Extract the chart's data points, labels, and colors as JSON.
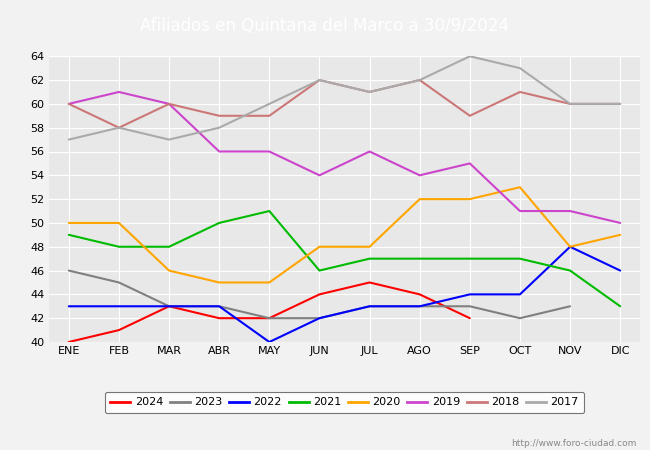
{
  "title": "Afiliados en Quintana del Marco a 30/9/2024",
  "header_bg": "#4472c4",
  "months": [
    "ENE",
    "FEB",
    "MAR",
    "ABR",
    "MAY",
    "JUN",
    "JUL",
    "AGO",
    "SEP",
    "OCT",
    "NOV",
    "DIC"
  ],
  "series": {
    "2024": {
      "color": "#ff0000",
      "data": [
        40,
        41,
        43,
        42,
        42,
        44,
        45,
        44,
        42,
        null,
        null,
        null
      ]
    },
    "2023": {
      "color": "#808080",
      "data": [
        46,
        45,
        43,
        43,
        42,
        42,
        43,
        43,
        43,
        42,
        43,
        null
      ]
    },
    "2022": {
      "color": "#0000ff",
      "data": [
        43,
        43,
        43,
        43,
        40,
        42,
        43,
        43,
        44,
        44,
        48,
        46
      ]
    },
    "2021": {
      "color": "#00bb00",
      "data": [
        49,
        48,
        48,
        50,
        51,
        46,
        47,
        47,
        47,
        47,
        46,
        43
      ]
    },
    "2020": {
      "color": "#ffa500",
      "data": [
        50,
        50,
        46,
        45,
        45,
        48,
        48,
        52,
        52,
        53,
        48,
        49
      ]
    },
    "2019": {
      "color": "#cc44cc",
      "data": [
        60,
        61,
        60,
        56,
        56,
        54,
        56,
        54,
        55,
        51,
        51,
        50
      ]
    },
    "2018": {
      "color": "#cc7777",
      "data": [
        60,
        58,
        60,
        59,
        59,
        62,
        61,
        62,
        59,
        61,
        60,
        60
      ]
    },
    "2017": {
      "color": "#aaaaaa",
      "data": [
        57,
        58,
        57,
        58,
        60,
        62,
        61,
        62,
        64,
        63,
        60,
        60
      ]
    }
  },
  "ylim": [
    40,
    64
  ],
  "yticks": [
    40,
    42,
    44,
    46,
    48,
    50,
    52,
    54,
    56,
    58,
    60,
    62,
    64
  ],
  "background_color": "#f2f2f2",
  "plot_bg": "#e8e8e8",
  "grid_color": "#ffffff",
  "watermark": "http://www.foro-ciudad.com",
  "legend_order": [
    "2024",
    "2023",
    "2022",
    "2021",
    "2020",
    "2019",
    "2018",
    "2017"
  ]
}
